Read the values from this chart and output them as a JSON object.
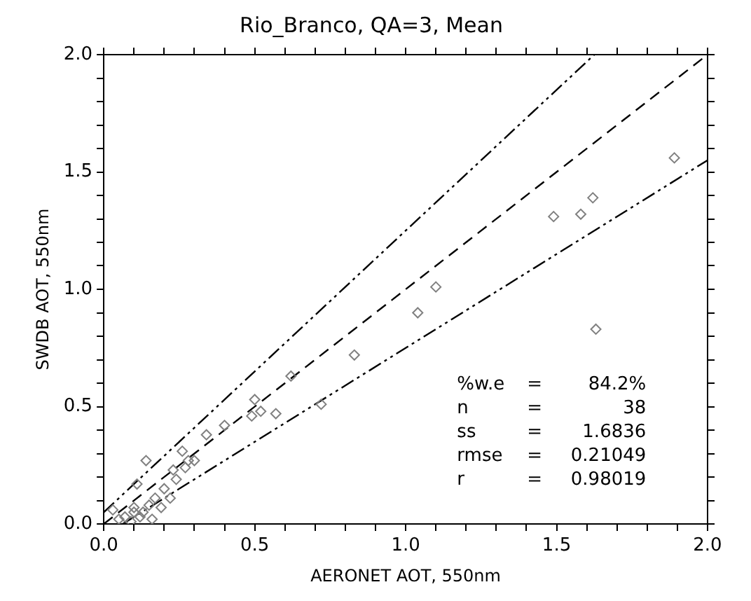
{
  "chart_data": {
    "type": "scatter",
    "title": "Rio_Branco, QA=3, Mean",
    "xlabel": "AERONET AOT, 550nm",
    "ylabel": "SWDB AOT, 550nm",
    "xlim": [
      0,
      2
    ],
    "ylim": [
      0,
      2
    ],
    "xticks": [
      {
        "value": 0,
        "label": "0.0"
      },
      {
        "value": 0.1,
        "label": null
      },
      {
        "value": 0.2,
        "label": null
      },
      {
        "value": 0.3,
        "label": null
      },
      {
        "value": 0.4,
        "label": null
      },
      {
        "value": 0.5,
        "label": "0.5"
      },
      {
        "value": 0.6,
        "label": null
      },
      {
        "value": 0.7,
        "label": null
      },
      {
        "value": 0.8,
        "label": null
      },
      {
        "value": 0.9,
        "label": null
      },
      {
        "value": 1,
        "label": "1.0"
      },
      {
        "value": 1.1,
        "label": null
      },
      {
        "value": 1.2,
        "label": null
      },
      {
        "value": 1.3,
        "label": null
      },
      {
        "value": 1.4,
        "label": null
      },
      {
        "value": 1.5,
        "label": "1.5"
      },
      {
        "value": 1.6,
        "label": null
      },
      {
        "value": 1.7,
        "label": null
      },
      {
        "value": 1.8,
        "label": null
      },
      {
        "value": 1.9,
        "label": null
      },
      {
        "value": 2,
        "label": "2.0"
      }
    ],
    "yticks": [
      {
        "value": 0,
        "label": "0.0"
      },
      {
        "value": 0.1,
        "label": null
      },
      {
        "value": 0.2,
        "label": null
      },
      {
        "value": 0.3,
        "label": null
      },
      {
        "value": 0.4,
        "label": null
      },
      {
        "value": 0.5,
        "label": "0.5"
      },
      {
        "value": 0.6,
        "label": null
      },
      {
        "value": 0.7,
        "label": null
      },
      {
        "value": 0.8,
        "label": null
      },
      {
        "value": 0.9,
        "label": null
      },
      {
        "value": 1,
        "label": "1.0"
      },
      {
        "value": 1.1,
        "label": null
      },
      {
        "value": 1.2,
        "label": null
      },
      {
        "value": 1.3,
        "label": null
      },
      {
        "value": 1.4,
        "label": null
      },
      {
        "value": 1.5,
        "label": "1.5"
      },
      {
        "value": 1.6,
        "label": null
      },
      {
        "value": 1.7,
        "label": null
      },
      {
        "value": 1.8,
        "label": null
      },
      {
        "value": 1.9,
        "label": null
      },
      {
        "value": 2,
        "label": "2.0"
      }
    ],
    "grid": false,
    "legend": false,
    "marker": "diamond",
    "annotations": [
      "%w.e  =   84.2%",
      "n       =         38",
      "ss      =     1.6836",
      "rmse  =   0.21049",
      "r       =   0.98019"
    ],
    "series": [
      {
        "type": "scatter",
        "color": "#808080",
        "x": [
          1.89,
          1.63,
          1.49,
          1.58,
          1.62,
          1.1,
          1.04,
          0.83,
          0.72,
          0.62,
          0.57,
          0.5,
          0.49,
          0.52,
          0.4,
          0.34,
          0.26,
          0.28,
          0.3,
          0.14,
          0.11,
          0.23,
          0.24,
          0.27,
          0.2,
          0.22,
          0.17,
          0.19,
          0.15,
          0.1,
          0.12,
          0.07,
          0.09,
          0.16,
          0.05,
          0.13,
          0.1,
          0.03
        ],
        "values": [
          1.56,
          0.83,
          1.31,
          1.32,
          1.39,
          1.01,
          0.9,
          0.72,
          0.51,
          0.63,
          0.47,
          0.53,
          0.46,
          0.48,
          0.42,
          0.38,
          0.31,
          0.27,
          0.27,
          0.27,
          0.17,
          0.23,
          0.19,
          0.24,
          0.15,
          0.11,
          0.11,
          0.07,
          0.08,
          0.05,
          0.03,
          0.03,
          0.01,
          0.02,
          0.02,
          0.05,
          0.07,
          0.06
        ]
      },
      {
        "type": "line",
        "color": "#000000",
        "line_style": "dashed",
        "marker": "none",
        "x": [
          0,
          2
        ],
        "values": [
          0,
          2
        ]
      },
      {
        "type": "line",
        "color": "#000000",
        "line_style": "dotted",
        "marker": "none",
        "x": [
          0,
          1.625
        ],
        "values": [
          0.05,
          2
        ]
      },
      {
        "type": "line",
        "color": "#000000",
        "line_style": "dotted",
        "marker": "none",
        "x": [
          0.0625,
          2
        ],
        "values": [
          0,
          1.55
        ]
      }
    ]
  }
}
